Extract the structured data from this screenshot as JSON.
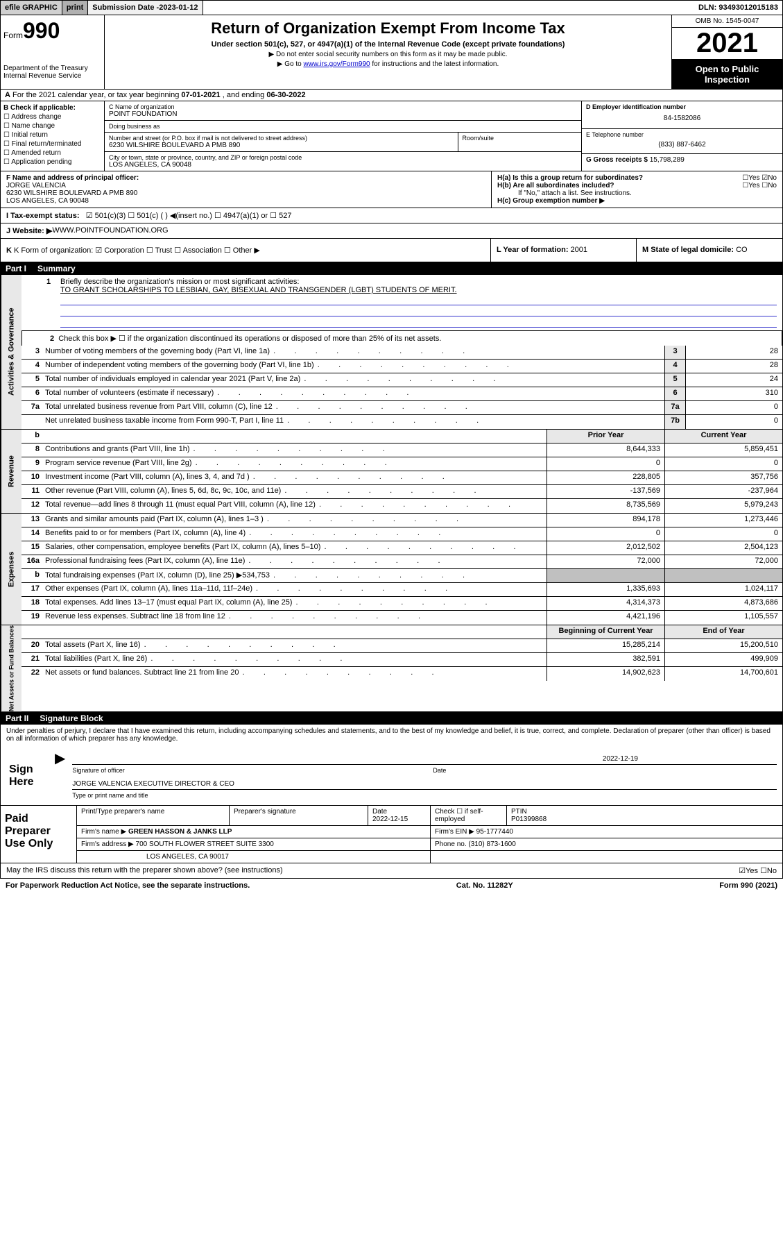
{
  "topbar": {
    "efile": "efile GRAPHIC",
    "print": "print",
    "subdate_lbl": "Submission Date - ",
    "subdate_val": "2023-01-12",
    "dln": "DLN: 93493012015183"
  },
  "header": {
    "form": "Form",
    "formno": "990",
    "dept": "Department of the Treasury",
    "irs": "Internal Revenue Service",
    "title": "Return of Organization Exempt From Income Tax",
    "sub": "Under section 501(c), 527, or 4947(a)(1) of the Internal Revenue Code (except private foundations)",
    "note1": "Do not enter social security numbers on this form as it may be made public.",
    "note2_a": "Go to ",
    "note2_link": "www.irs.gov/Form990",
    "note2_b": " for instructions and the latest information.",
    "omb": "OMB No. 1545-0047",
    "year": "2021",
    "open": "Open to Public Inspection"
  },
  "row_a": {
    "pre": "A",
    "text": "For the 2021 calendar year, or tax year beginning ",
    "beg": "07-01-2021",
    "mid": " , and ending ",
    "end": "06-30-2022"
  },
  "col_b": {
    "hdr": "B Check if applicable:",
    "items": [
      "Address change",
      "Name change",
      "Initial return",
      "Final return/terminated",
      "Amended return",
      "Application pending"
    ]
  },
  "col_c": {
    "name_lbl": "C Name of organization",
    "name": "POINT FOUNDATION",
    "dba_lbl": "Doing business as",
    "dba": "",
    "addr_lbl": "Number and street (or P.O. box if mail is not delivered to street address)",
    "room_lbl": "Room/suite",
    "addr": "6230 WILSHIRE BOULEVARD A PMB 890",
    "city_lbl": "City or town, state or province, country, and ZIP or foreign postal code",
    "city": "LOS ANGELES, CA  90048"
  },
  "col_d": {
    "ein_lbl": "D Employer identification number",
    "ein": "84-1582086",
    "tel_lbl": "E Telephone number",
    "tel": "(833) 887-6462",
    "gross_lbl": "G Gross receipts $",
    "gross": "15,798,289"
  },
  "officer": {
    "lbl": "F Name and address of principal officer:",
    "name": "JORGE VALENCIA",
    "addr1": "6230 WILSHIRE BOULEVARD A PMB 890",
    "addr2": "LOS ANGELES, CA  90048",
    "ha": "H(a)  Is this a group return for subordinates?",
    "ha_ans": "☐Yes ☑No",
    "hb": "H(b)  Are all subordinates included?",
    "hb_ans": "☐Yes ☐No",
    "hb_note": "If \"No,\" attach a list. See instructions.",
    "hc": "H(c)  Group exemption number ▶"
  },
  "line_i": {
    "lbl": "I   Tax-exempt status:",
    "opts": "☑ 501(c)(3)   ☐ 501(c) (  ) ◀(insert no.)   ☐ 4947(a)(1) or  ☐ 527"
  },
  "line_j": {
    "lbl": "J   Website: ▶",
    "val": " WWW.POINTFOUNDATION.ORG"
  },
  "line_k": {
    "k1": "K Form of organization:  ☑ Corporation  ☐ Trust  ☐ Association  ☐ Other ▶",
    "k2_lbl": "L Year of formation: ",
    "k2_val": "2001",
    "k3_lbl": "M State of legal domicile: ",
    "k3_val": "CO"
  },
  "part1": {
    "no": "Part I",
    "title": "Summary"
  },
  "mission": {
    "num": "1",
    "lbl": "Briefly describe the organization's mission or most significant activities:",
    "text": "TO GRANT SCHOLARSHIPS TO LESBIAN, GAY, BISEXUAL AND TRANSGENDER (LGBT) STUDENTS OF MERIT."
  },
  "check2": {
    "num": "2",
    "text": "Check this box ▶ ☐  if the organization discontinued its operations or disposed of more than 25% of its net assets."
  },
  "gov_rows": [
    {
      "n": "3",
      "t": "Number of voting members of the governing body (Part VI, line 1a)",
      "cn": "3",
      "cv": "28"
    },
    {
      "n": "4",
      "t": "Number of independent voting members of the governing body (Part VI, line 1b)",
      "cn": "4",
      "cv": "28"
    },
    {
      "n": "5",
      "t": "Total number of individuals employed in calendar year 2021 (Part V, line 2a)",
      "cn": "5",
      "cv": "24"
    },
    {
      "n": "6",
      "t": "Total number of volunteers (estimate if necessary)",
      "cn": "6",
      "cv": "310"
    },
    {
      "n": "7a",
      "t": "Total unrelated business revenue from Part VIII, column (C), line 12",
      "cn": "7a",
      "cv": "0"
    },
    {
      "n": "",
      "t": "Net unrelated business taxable income from Form 990-T, Part I, line 11",
      "cn": "7b",
      "cv": "0"
    }
  ],
  "rev_hdr": {
    "b": "b",
    "c1": "Prior Year",
    "c2": "Current Year"
  },
  "rev_rows": [
    {
      "n": "8",
      "t": "Contributions and grants (Part VIII, line 1h)",
      "c1": "8,644,333",
      "c2": "5,859,451"
    },
    {
      "n": "9",
      "t": "Program service revenue (Part VIII, line 2g)",
      "c1": "0",
      "c2": "0"
    },
    {
      "n": "10",
      "t": "Investment income (Part VIII, column (A), lines 3, 4, and 7d )",
      "c1": "228,805",
      "c2": "357,756"
    },
    {
      "n": "11",
      "t": "Other revenue (Part VIII, column (A), lines 5, 6d, 8c, 9c, 10c, and 11e)",
      "c1": "-137,569",
      "c2": "-237,964"
    },
    {
      "n": "12",
      "t": "Total revenue—add lines 8 through 11 (must equal Part VIII, column (A), line 12)",
      "c1": "8,735,569",
      "c2": "5,979,243"
    }
  ],
  "exp_rows": [
    {
      "n": "13",
      "t": "Grants and similar amounts paid (Part IX, column (A), lines 1–3 )",
      "c1": "894,178",
      "c2": "1,273,446"
    },
    {
      "n": "14",
      "t": "Benefits paid to or for members (Part IX, column (A), line 4)",
      "c1": "0",
      "c2": "0"
    },
    {
      "n": "15",
      "t": "Salaries, other compensation, employee benefits (Part IX, column (A), lines 5–10)",
      "c1": "2,012,502",
      "c2": "2,504,123"
    },
    {
      "n": "16a",
      "t": "Professional fundraising fees (Part IX, column (A), line 11e)",
      "c1": "72,000",
      "c2": "72,000"
    },
    {
      "n": "b",
      "t": "Total fundraising expenses (Part IX, column (D), line 25) ▶534,753",
      "c1": "grey",
      "c2": "grey"
    },
    {
      "n": "17",
      "t": "Other expenses (Part IX, column (A), lines 11a–11d, 11f–24e)",
      "c1": "1,335,693",
      "c2": "1,024,117"
    },
    {
      "n": "18",
      "t": "Total expenses. Add lines 13–17 (must equal Part IX, column (A), line 25)",
      "c1": "4,314,373",
      "c2": "4,873,686"
    },
    {
      "n": "19",
      "t": "Revenue less expenses. Subtract line 18 from line 12",
      "c1": "4,421,196",
      "c2": "1,105,557"
    }
  ],
  "net_hdr": {
    "c1": "Beginning of Current Year",
    "c2": "End of Year"
  },
  "net_rows": [
    {
      "n": "20",
      "t": "Total assets (Part X, line 16)",
      "c1": "15,285,214",
      "c2": "15,200,510"
    },
    {
      "n": "21",
      "t": "Total liabilities (Part X, line 26)",
      "c1": "382,591",
      "c2": "499,909"
    },
    {
      "n": "22",
      "t": "Net assets or fund balances. Subtract line 21 from line 20",
      "c1": "14,902,623",
      "c2": "14,700,601"
    }
  ],
  "vside": {
    "gov": "Activities & Governance",
    "rev": "Revenue",
    "exp": "Expenses",
    "net": "Net Assets or Fund Balances"
  },
  "part2": {
    "no": "Part II",
    "title": "Signature Block"
  },
  "sig": {
    "penalty": "Under penalties of perjury, I declare that I have examined this return, including accompanying schedules and statements, and to the best of my knowledge and belief, it is true, correct, and complete. Declaration of preparer (other than officer) is based on all information of which preparer has any knowledge.",
    "here": "Sign Here",
    "sig_lbl": "Signature of officer",
    "date_lbl": "Date",
    "date": "2022-12-19",
    "name": "JORGE VALENCIA  EXECUTIVE DIRECTOR & CEO",
    "name_lbl": "Type or print name and title"
  },
  "paid": {
    "lbl": "Paid Preparer Use Only",
    "r1": {
      "c1": "Print/Type preparer's name",
      "c2": "Preparer's signature",
      "c3": "Date",
      "c3v": "2022-12-15",
      "c4": "Check ☐ if self-employed",
      "c5": "PTIN",
      "c5v": "P01399868"
    },
    "r2": {
      "c1": "Firm's name    ▶",
      "c1v": "GREEN HASSON & JANKS LLP",
      "c2": "Firm's EIN ▶",
      "c2v": "95-1777440"
    },
    "r3": {
      "c1": "Firm's address ▶",
      "c1v": "700 SOUTH FLOWER STREET SUITE 3300",
      "c2": "Phone no.",
      "c2v": "(310) 873-1600"
    },
    "r4": {
      "c1v": "LOS ANGELES, CA  90017"
    }
  },
  "discuss": {
    "t": "May the IRS discuss this return with the preparer shown above? (see instructions)",
    "ans": "☑Yes  ☐No"
  },
  "footer": {
    "l": "For Paperwork Reduction Act Notice, see the separate instructions.",
    "m": "Cat. No. 11282Y",
    "r": "Form 990 (2021)"
  }
}
